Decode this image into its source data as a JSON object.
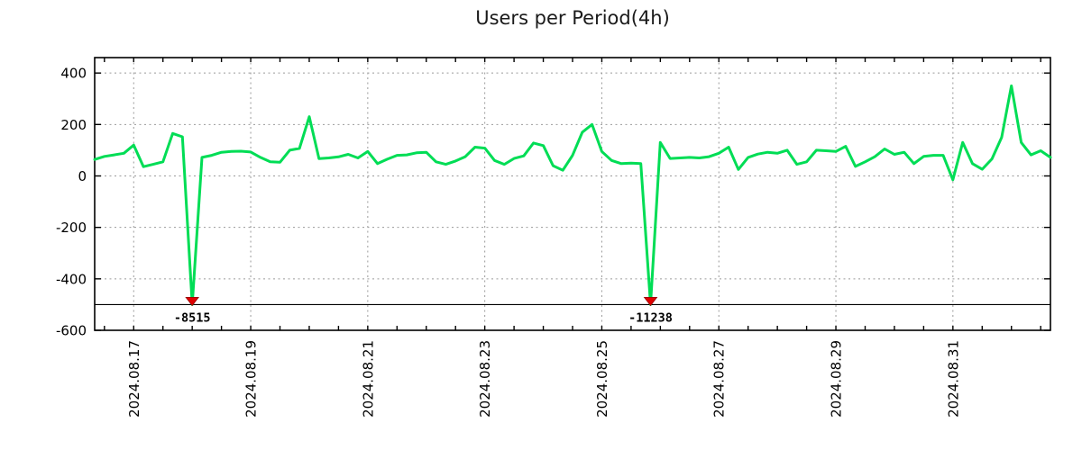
{
  "title": "Users per Period(4h)",
  "chart_data": {
    "type": "line",
    "title": "Users per Period(4h)",
    "period": "4h",
    "grid": true,
    "legend": "none",
    "colors": {
      "line": "#00dd55",
      "dip_marker": "#e00000",
      "annotation_text": "#00dd55",
      "grid": "#9a9a9a",
      "border": "#000000",
      "clip_line": "#000000",
      "title_text": "#1a1a1a",
      "background": "#ffffff"
    },
    "y_axis": {
      "min": -600,
      "max": 460,
      "ticks": [
        400,
        200,
        0,
        -200,
        -400,
        -600
      ],
      "gridline_values": [
        400,
        200,
        0,
        -200,
        -400
      ]
    },
    "x_axis": {
      "tick_labels": [
        "2024.08.17",
        "2024.08.19",
        "2024.08.21",
        "2024.08.23",
        "2024.08.25",
        "2024.08.27",
        "2024.08.29",
        "2024.08.31"
      ],
      "tick_indices": [
        4,
        16,
        28,
        40,
        52,
        64,
        76,
        88
      ],
      "minor_tick_offset": 1,
      "minor_tick_step": 3,
      "label_rotation_deg": -90
    },
    "clip_line_value": -500,
    "values": [
      64,
      76,
      82,
      88,
      120,
      36,
      45,
      55,
      165,
      152,
      -8515,
      72,
      80,
      92,
      95,
      96,
      93,
      72,
      55,
      53,
      100,
      107,
      230,
      67,
      70,
      74,
      84,
      70,
      95,
      48,
      65,
      80,
      82,
      90,
      92,
      55,
      45,
      58,
      75,
      112,
      108,
      60,
      45,
      68,
      78,
      128,
      118,
      40,
      22,
      80,
      170,
      200,
      95,
      60,
      48,
      50,
      48,
      -11238,
      130,
      68,
      70,
      72,
      70,
      75,
      88,
      112,
      25,
      72,
      85,
      92,
      88,
      100,
      45,
      55,
      100,
      98,
      95,
      115,
      37,
      55,
      75,
      105,
      84,
      92,
      48,
      76,
      80,
      80,
      -15,
      130,
      48,
      26,
      66,
      150,
      350,
      130,
      82,
      98,
      72
    ],
    "annotations": [
      {
        "index": 10,
        "label": "-8515",
        "value": -8515
      },
      {
        "index": 57,
        "label": "-11238",
        "value": -11238
      }
    ]
  }
}
